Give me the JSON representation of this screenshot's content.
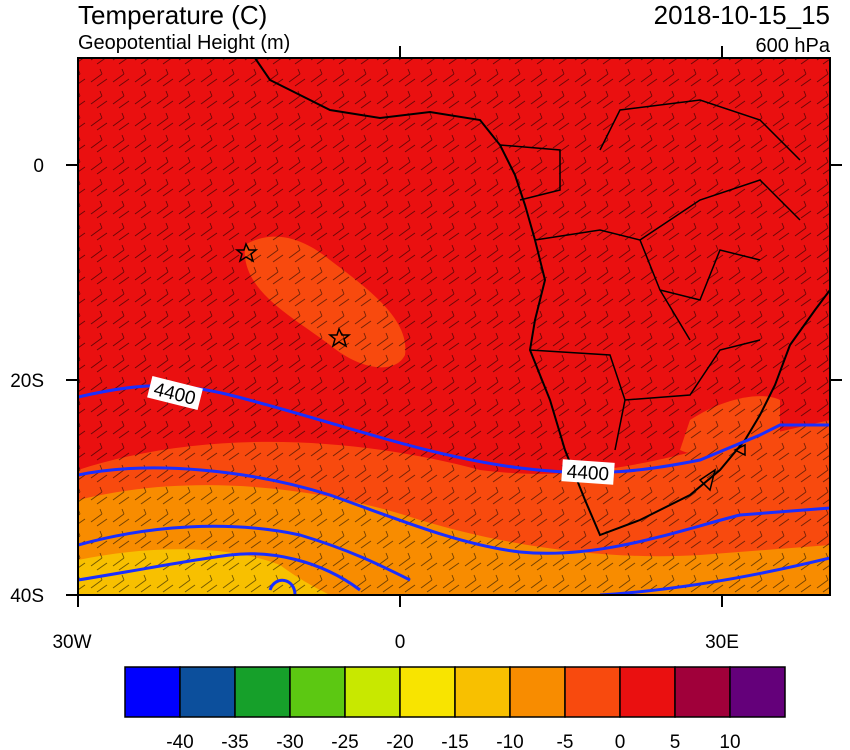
{
  "header": {
    "title": "Temperature (C)",
    "subtitle": "Geopotential Height (m)",
    "time": "2018-10-15_15",
    "level": "600 hPa"
  },
  "map": {
    "lat_labels": [
      "0",
      "20S",
      "40S"
    ],
    "lon_labels": [
      "30W",
      "0",
      "30E"
    ],
    "contour_labels": [
      "4400",
      "4400"
    ]
  },
  "colorbar": {
    "colors": [
      "#0000ff",
      "#0c4f9c",
      "#16a02a",
      "#5cc812",
      "#c8e800",
      "#f8e400",
      "#f8c000",
      "#f88c00",
      "#f84a0e",
      "#ea1010",
      "#a0003a",
      "#64007a"
    ],
    "labels": [
      "-40",
      "-35",
      "-30",
      "-25",
      "-20",
      "-15",
      "-10",
      "-5",
      "0",
      "5",
      "10"
    ]
  }
}
